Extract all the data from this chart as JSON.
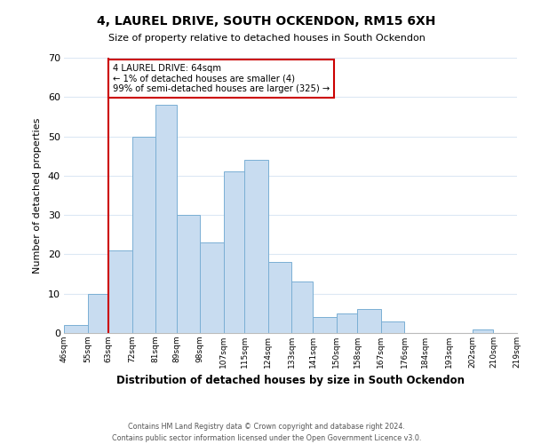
{
  "title": "4, LAUREL DRIVE, SOUTH OCKENDON, RM15 6XH",
  "subtitle": "Size of property relative to detached houses in South Ockendon",
  "xlabel": "Distribution of detached houses by size in South Ockendon",
  "ylabel": "Number of detached properties",
  "footer_line1": "Contains HM Land Registry data © Crown copyright and database right 2024.",
  "footer_line2": "Contains public sector information licensed under the Open Government Licence v3.0.",
  "annotation_line1": "4 LAUREL DRIVE: 64sqm",
  "annotation_line2": "← 1% of detached houses are smaller (4)",
  "annotation_line3": "99% of semi-detached houses are larger (325) →",
  "bar_edges": [
    46,
    55,
    63,
    72,
    81,
    89,
    98,
    107,
    115,
    124,
    133,
    141,
    150,
    158,
    167,
    176,
    184,
    193,
    202,
    210,
    219
  ],
  "bar_heights": [
    2,
    10,
    21,
    50,
    58,
    30,
    23,
    41,
    44,
    18,
    13,
    4,
    5,
    6,
    3,
    0,
    0,
    0,
    1,
    0
  ],
  "bar_color": "#c8dcf0",
  "bar_edgecolor": "#7aafd4",
  "highlight_x": 63,
  "vline_color": "#cc0000",
  "annotation_box_edgecolor": "#cc0000",
  "ylim": [
    0,
    70
  ],
  "xlim_min": 46,
  "xlim_max": 219,
  "tick_labels": [
    "46sqm",
    "55sqm",
    "63sqm",
    "72sqm",
    "81sqm",
    "89sqm",
    "98sqm",
    "107sqm",
    "115sqm",
    "124sqm",
    "133sqm",
    "141sqm",
    "150sqm",
    "158sqm",
    "167sqm",
    "176sqm",
    "184sqm",
    "193sqm",
    "202sqm",
    "210sqm",
    "219sqm"
  ],
  "background_color": "#ffffff",
  "grid_color": "#dce8f4"
}
